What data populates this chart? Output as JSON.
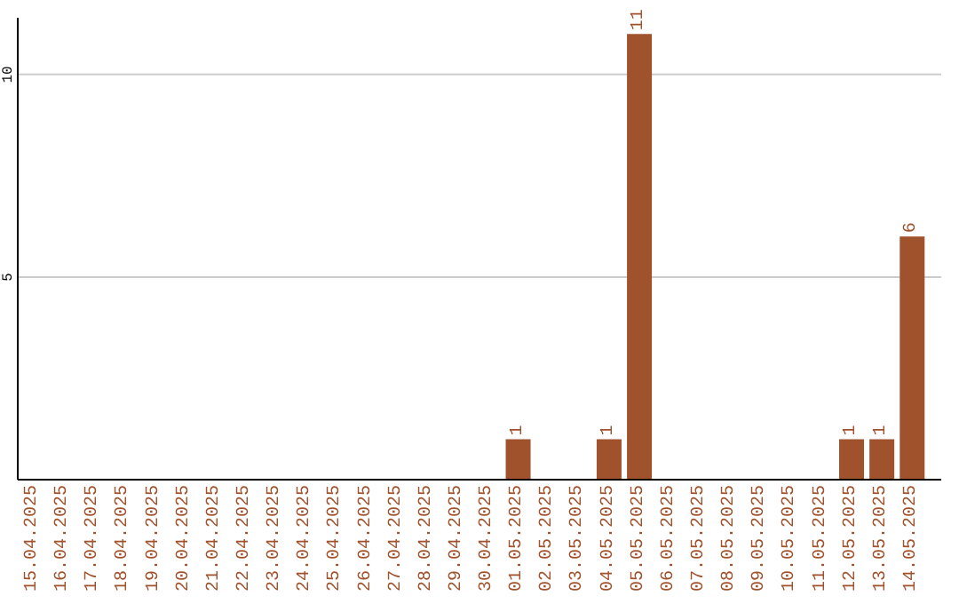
{
  "chart_data": {
    "type": "bar",
    "categories": [
      "15.04.2025",
      "16.04.2025",
      "17.04.2025",
      "18.04.2025",
      "19.04.2025",
      "20.04.2025",
      "21.04.2025",
      "22.04.2025",
      "23.04.2025",
      "24.04.2025",
      "25.04.2025",
      "26.04.2025",
      "27.04.2025",
      "28.04.2025",
      "29.04.2025",
      "30.04.2025",
      "01.05.2025",
      "02.05.2025",
      "03.05.2025",
      "04.05.2025",
      "05.05.2025",
      "06.05.2025",
      "07.05.2025",
      "08.05.2025",
      "09.05.2025",
      "10.05.2025",
      "11.05.2025",
      "12.05.2025",
      "13.05.2025",
      "14.05.2025"
    ],
    "values": [
      0,
      0,
      0,
      0,
      0,
      0,
      0,
      0,
      0,
      0,
      0,
      0,
      0,
      0,
      0,
      0,
      1,
      0,
      0,
      1,
      11,
      0,
      0,
      0,
      0,
      0,
      0,
      1,
      1,
      6
    ],
    "value_labels": [
      null,
      null,
      null,
      null,
      null,
      null,
      null,
      null,
      null,
      null,
      null,
      null,
      null,
      null,
      null,
      null,
      "1",
      null,
      null,
      "1",
      "11",
      null,
      null,
      null,
      null,
      null,
      null,
      "1",
      "1",
      "6"
    ],
    "color": "#a0522d",
    "ylim": [
      0,
      11.4
    ],
    "yticks": [
      5,
      10
    ],
    "grid": "y"
  }
}
